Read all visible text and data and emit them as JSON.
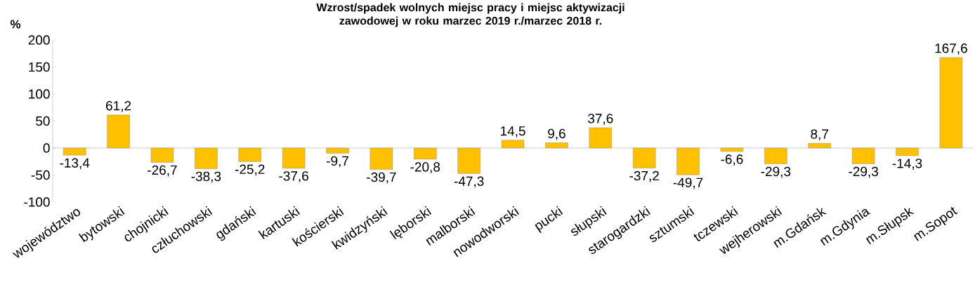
{
  "chart_data": {
    "type": "bar",
    "title": "Wzrost/spadek wolnych miejsc pracy i miejsc aktywizacji zawodowej w roku marzec 2019 r./marzec 2018 r.",
    "ylabel": "%",
    "categories": [
      "województwo",
      "bytowski",
      "chojnicki",
      "człuchowski",
      "gdański",
      "kartuski",
      "kościerski",
      "kwidzyński",
      "lęborski",
      "malborski",
      "nowodworski",
      "pucki",
      "słupski",
      "starogardzki",
      "sztumski",
      "tczewski",
      "wejherowski",
      "m.Gdańsk",
      "m.Gdynia",
      "m.Słupsk",
      "m.Sopot"
    ],
    "values": [
      -13.4,
      61.2,
      -26.7,
      -38.3,
      -25.2,
      -37.6,
      -9.7,
      -39.7,
      -20.8,
      -47.3,
      14.5,
      9.6,
      37.6,
      -37.2,
      -49.7,
      -6.6,
      -29.3,
      8.7,
      -29.3,
      -14.3,
      167.6
    ],
    "value_labels": [
      "-13,4",
      "61,2",
      "-26,7",
      "-38,3",
      "-25,2",
      "-37,6",
      "-9,7",
      "-39,7",
      "-20,8",
      "-47,3",
      "14,5",
      "9,6",
      "37,6",
      "-37,2",
      "-49,7",
      "-6,6",
      "-29,3",
      "8,7",
      "-29,3",
      "-14,3",
      "167,6"
    ],
    "color": "#ffc000",
    "ylim": [
      -100,
      200
    ],
    "yticks": [
      -100,
      -50,
      0,
      50,
      100,
      150,
      200
    ]
  }
}
